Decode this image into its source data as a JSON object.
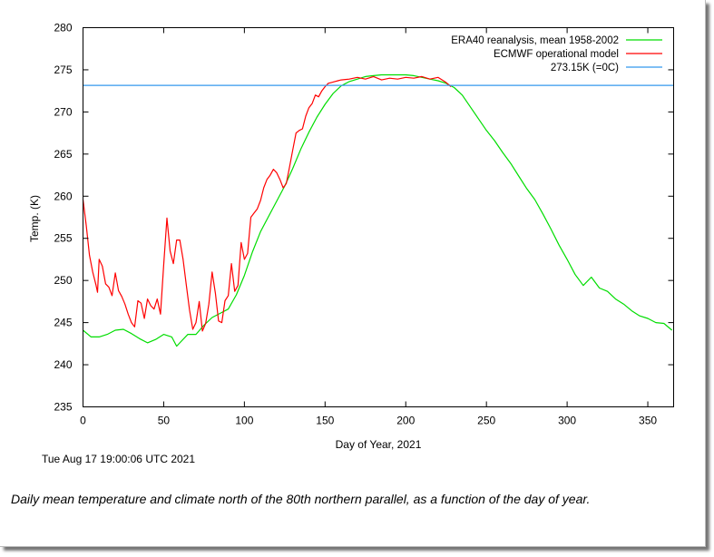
{
  "chart_data": {
    "type": "line",
    "title": "",
    "xlabel": "Day of Year, 2021",
    "ylabel": "Temp. (K)",
    "xlim": [
      0,
      366
    ],
    "ylim": [
      235,
      280
    ],
    "x_ticks": [
      0,
      50,
      100,
      150,
      200,
      250,
      300,
      350
    ],
    "y_ticks": [
      235,
      240,
      245,
      250,
      255,
      260,
      265,
      270,
      275,
      280
    ],
    "grid": false,
    "legend_position": "top-right",
    "series": [
      {
        "name": "ERA40 reanalysis, mean 1958-2002",
        "color": "#00dd00",
        "x": [
          0,
          5,
          10,
          15,
          20,
          25,
          30,
          35,
          40,
          45,
          50,
          55,
          58,
          60,
          65,
          70,
          75,
          80,
          85,
          90,
          95,
          100,
          105,
          110,
          115,
          120,
          125,
          130,
          135,
          140,
          145,
          150,
          155,
          160,
          165,
          170,
          175,
          180,
          185,
          190,
          195,
          200,
          205,
          210,
          215,
          220,
          225,
          230,
          235,
          240,
          245,
          250,
          255,
          260,
          265,
          270,
          275,
          280,
          285,
          290,
          295,
          300,
          305,
          310,
          315,
          320,
          325,
          330,
          335,
          340,
          345,
          350,
          355,
          360,
          365
        ],
        "y": [
          244.1,
          243.3,
          243.3,
          243.6,
          244.1,
          244.2,
          243.7,
          243.1,
          242.6,
          243.0,
          243.6,
          243.3,
          242.2,
          242.6,
          243.6,
          243.6,
          244.7,
          245.6,
          246.1,
          246.6,
          248.3,
          250.6,
          253.4,
          255.8,
          257.6,
          259.4,
          261.2,
          263.3,
          265.6,
          267.6,
          269.4,
          270.9,
          272.2,
          273.1,
          273.6,
          273.9,
          274.2,
          274.3,
          274.4,
          274.4,
          274.4,
          274.4,
          274.3,
          274.1,
          273.9,
          273.7,
          273.4,
          272.9,
          272.0,
          270.6,
          269.2,
          267.8,
          266.6,
          265.2,
          263.9,
          262.4,
          260.9,
          259.6,
          257.9,
          256.1,
          254.2,
          252.5,
          250.7,
          249.4,
          250.4,
          249.1,
          248.7,
          247.8,
          247.2,
          246.4,
          245.8,
          245.5,
          245.0,
          244.9,
          244.1
        ]
      },
      {
        "name": "ECMWF operational model",
        "color": "#ff0000",
        "x": [
          0,
          2,
          4,
          6,
          8,
          9,
          10,
          12,
          14,
          16,
          18,
          20,
          22,
          24,
          26,
          28,
          30,
          32,
          34,
          36,
          38,
          40,
          42,
          44,
          46,
          48,
          50,
          52,
          54,
          56,
          58,
          60,
          62,
          64,
          66,
          68,
          70,
          72,
          74,
          76,
          78,
          80,
          82,
          84,
          86,
          88,
          90,
          92,
          94,
          96,
          98,
          100,
          102,
          104,
          106,
          108,
          110,
          112,
          114,
          116,
          118,
          120,
          122,
          124,
          126,
          128,
          130,
          132,
          134,
          136,
          138,
          140,
          142,
          144,
          146,
          148,
          150,
          152,
          154,
          156,
          158,
          160,
          165,
          170,
          175,
          180,
          185,
          190,
          195,
          200,
          205,
          210,
          215,
          220,
          225,
          228
        ],
        "y": [
          259.6,
          256.5,
          253.0,
          251.0,
          249.5,
          248.6,
          252.5,
          251.7,
          249.6,
          249.2,
          248.2,
          250.9,
          248.8,
          248.1,
          247.2,
          246.0,
          245.0,
          244.5,
          247.6,
          247.3,
          245.5,
          247.8,
          247.0,
          246.6,
          247.8,
          246.0,
          251.8,
          257.4,
          253.5,
          252.0,
          254.8,
          254.8,
          252.5,
          249.5,
          246.5,
          244.2,
          245.0,
          247.5,
          244.0,
          244.9,
          247.2,
          251.0,
          248.5,
          245.2,
          245.0,
          247.6,
          248.2,
          252.0,
          248.7,
          249.4,
          254.5,
          252.5,
          253.2,
          257.5,
          258.0,
          258.5,
          259.5,
          261.0,
          262.0,
          262.5,
          263.2,
          262.8,
          262.0,
          261.0,
          261.5,
          263.5,
          265.5,
          267.5,
          267.8,
          268.0,
          269.5,
          270.5,
          271.0,
          272.0,
          271.8,
          272.5,
          273.0,
          273.4,
          273.5,
          273.6,
          273.7,
          273.8,
          273.9,
          274.1,
          273.9,
          274.2,
          273.8,
          274.0,
          273.9,
          274.1,
          274.0,
          274.2,
          273.9,
          274.1,
          273.5,
          273.0
        ]
      },
      {
        "name": "273.15K (=0C)",
        "color": "#3399ee",
        "x": [
          0,
          366
        ],
        "y": [
          273.15,
          273.15
        ]
      }
    ]
  },
  "timestamp": "Tue Aug 17 19:00:06 UTC 2021",
  "caption": "Daily mean temperature and climate north of the 80th northern parallel, as a function of the day of year."
}
